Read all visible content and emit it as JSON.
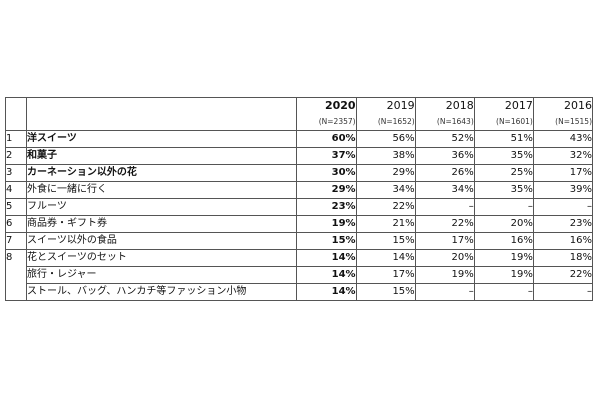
{
  "table": {
    "years": [
      {
        "year": "2020",
        "n": "(N=2357)"
      },
      {
        "year": "2019",
        "n": "(N=1652)"
      },
      {
        "year": "2018",
        "n": "(N=1643)"
      },
      {
        "year": "2017",
        "n": "(N=1601)"
      },
      {
        "year": "2016",
        "n": "(N=1515)"
      }
    ],
    "rows": [
      {
        "rank": "1",
        "item": "洋スイーツ",
        "bold": true,
        "values": [
          "60%",
          "56%",
          "52%",
          "51%",
          "43%"
        ]
      },
      {
        "rank": "2",
        "item": "和菓子",
        "bold": true,
        "values": [
          "37%",
          "38%",
          "36%",
          "35%",
          "32%"
        ]
      },
      {
        "rank": "3",
        "item": "カーネーション以外の花",
        "bold": true,
        "values": [
          "30%",
          "29%",
          "26%",
          "25%",
          "17%"
        ]
      },
      {
        "rank": "4",
        "item": "外食に一緒に行く",
        "bold": false,
        "values": [
          "29%",
          "34%",
          "34%",
          "35%",
          "39%"
        ]
      },
      {
        "rank": "5",
        "item": "フルーツ",
        "bold": false,
        "values": [
          "23%",
          "22%",
          "–",
          "–",
          "–"
        ]
      },
      {
        "rank": "6",
        "item": "商品券・ギフト券",
        "bold": false,
        "values": [
          "19%",
          "21%",
          "22%",
          "20%",
          "23%"
        ]
      },
      {
        "rank": "7",
        "item": "スイーツ以外の食品",
        "bold": false,
        "values": [
          "15%",
          "15%",
          "17%",
          "16%",
          "16%"
        ]
      },
      {
        "rank": "8",
        "item": "花とスイーツのセット",
        "bold": false,
        "values": [
          "14%",
          "14%",
          "20%",
          "19%",
          "18%"
        ]
      },
      {
        "rank": "",
        "item": "旅行・レジャー",
        "bold": false,
        "values": [
          "14%",
          "17%",
          "19%",
          "19%",
          "22%"
        ]
      },
      {
        "rank": "",
        "item": "ストール、バッグ、ハンカチ等ファッション小物",
        "bold": false,
        "values": [
          "14%",
          "15%",
          "–",
          "–",
          "–"
        ]
      }
    ]
  }
}
